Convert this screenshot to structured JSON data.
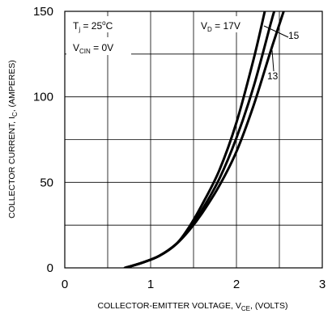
{
  "chart_data": {
    "type": "line",
    "xlabel": {
      "main": "COLLECTOR-EMITTER VOLTAGE, V",
      "sub": "CE",
      "tail": ", (VOLTS)"
    },
    "ylabel": {
      "main": "COLLECTOR CURRENT, I",
      "sub": "C",
      "tail": ", (AMPERES)"
    },
    "xlim": [
      0,
      3
    ],
    "ylim": [
      0,
      150
    ],
    "x_ticks": [
      0,
      1,
      2,
      3
    ],
    "y_ticks": [
      0,
      50,
      100,
      150
    ],
    "x_tick_labels": [
      "0",
      "1",
      "2",
      "3"
    ],
    "y_tick_labels": [
      "0",
      "50",
      "100",
      "150"
    ],
    "grid": true,
    "annotations": {
      "tj": {
        "main": "T",
        "sub": "j",
        "tail": " = 25",
        "sup": "o",
        "unit": "C"
      },
      "vcin": {
        "main": "V",
        "sub": "CIN",
        "tail": " = 0V"
      },
      "vd": {
        "main": "V",
        "sub": "D",
        "tail": " = 17V"
      },
      "label_15": "15",
      "label_13": "13"
    },
    "series": [
      {
        "name": "17",
        "x": [
          0.7,
          0.9,
          1.1,
          1.3,
          1.45,
          1.6,
          1.8,
          2.0,
          2.2,
          2.33
        ],
        "y": [
          0,
          3,
          7,
          14,
          24,
          37,
          57,
          85,
          122,
          150
        ]
      },
      {
        "name": "15",
        "x": [
          0.7,
          0.9,
          1.1,
          1.3,
          1.45,
          1.6,
          1.8,
          2.0,
          2.2,
          2.4,
          2.44
        ],
        "y": [
          0,
          3,
          7,
          14,
          23,
          34,
          52,
          76,
          106,
          143,
          150
        ]
      },
      {
        "name": "13",
        "x": [
          0.7,
          0.9,
          1.1,
          1.3,
          1.45,
          1.6,
          1.8,
          2.0,
          2.2,
          2.4,
          2.55
        ],
        "y": [
          0,
          3,
          7,
          14,
          22,
          32,
          48,
          68,
          95,
          127,
          150
        ]
      }
    ],
    "line_color": "#000000"
  }
}
